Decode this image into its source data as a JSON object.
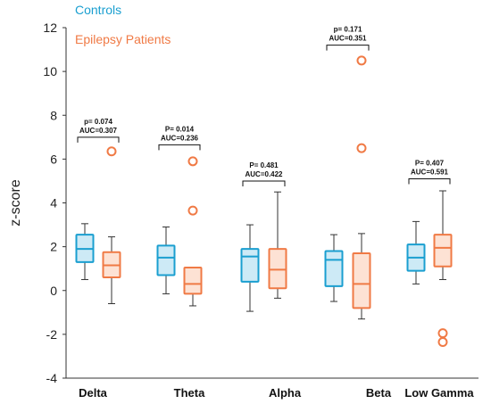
{
  "chart_data": {
    "type": "box",
    "ylabel": "z-score",
    "ylim": [
      -4,
      12
    ],
    "yticks": [
      -4,
      -2,
      0,
      2,
      4,
      6,
      8,
      10,
      12
    ],
    "categories": [
      "Delta",
      "Theta",
      "Alpha",
      "Beta",
      "Low Gamma"
    ],
    "legend_position": "top-left",
    "series": [
      {
        "name": "Controls",
        "color": "#1a9fd0",
        "fill": "#cdeaf6",
        "boxes": [
          {
            "whisker_low": 0.5,
            "q1": 1.3,
            "median": 1.9,
            "q3": 2.55,
            "whisker_high": 3.05,
            "outliers": []
          },
          {
            "whisker_low": -0.15,
            "q1": 0.7,
            "median": 1.5,
            "q3": 2.05,
            "whisker_high": 2.9,
            "outliers": []
          },
          {
            "whisker_low": -0.95,
            "q1": 0.4,
            "median": 1.55,
            "q3": 1.9,
            "whisker_high": 3.0,
            "outliers": []
          },
          {
            "whisker_low": -0.5,
            "q1": 0.2,
            "median": 1.4,
            "q3": 1.8,
            "whisker_high": 2.55,
            "outliers": []
          },
          {
            "whisker_low": 0.3,
            "q1": 0.9,
            "median": 1.5,
            "q3": 2.1,
            "whisker_high": 3.15,
            "outliers": []
          }
        ]
      },
      {
        "name": "Epilepsy Patients",
        "color": "#f07a45",
        "fill": "#fde2d4",
        "boxes": [
          {
            "whisker_low": -0.6,
            "q1": 0.6,
            "median": 1.15,
            "q3": 1.75,
            "whisker_high": 2.45,
            "outliers": [
              6.35
            ]
          },
          {
            "whisker_low": -0.7,
            "q1": -0.15,
            "median": 0.3,
            "q3": 1.05,
            "whisker_high": 1.05,
            "outliers": [
              3.65,
              5.9
            ]
          },
          {
            "whisker_low": -0.35,
            "q1": 0.1,
            "median": 0.95,
            "q3": 1.9,
            "whisker_high": 4.5,
            "outliers": []
          },
          {
            "whisker_low": -1.3,
            "q1": -0.8,
            "median": 0.3,
            "q3": 1.7,
            "whisker_high": 2.6,
            "outliers": [
              6.5,
              10.5
            ]
          },
          {
            "whisker_low": 0.5,
            "q1": 1.1,
            "median": 1.95,
            "q3": 2.55,
            "whisker_high": 4.55,
            "outliers": [
              -1.95,
              -2.35
            ]
          }
        ]
      }
    ],
    "annotations": [
      {
        "category": "Delta",
        "line1": "p= 0.074",
        "line2": "AUC=0.307",
        "bracket_y": 7.0
      },
      {
        "category": "Theta",
        "line1": "P= 0.014",
        "line2": "AUC=0.236",
        "bracket_y": 6.65
      },
      {
        "category": "Alpha",
        "line1": "P= 0.481",
        "line2": "AUC=0.422",
        "bracket_y": 5.0
      },
      {
        "category": "Beta",
        "line1": "p= 0.171",
        "line2": "AUC=0.351",
        "bracket_y": 11.2
      },
      {
        "category": "Low Gamma",
        "line1": "P= 0.407",
        "line2": "AUC=0.591",
        "bracket_y": 5.1
      }
    ]
  }
}
